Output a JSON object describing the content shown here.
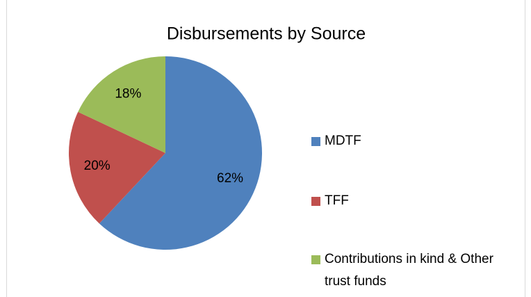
{
  "chart_data": {
    "type": "pie",
    "title": "Disbursements by Source",
    "categories": [
      "MDTF",
      "TFF",
      "Contributions in kind & Other trust funds"
    ],
    "values": [
      62,
      20,
      18
    ],
    "value_labels": [
      "62%",
      "20%",
      "18%"
    ],
    "colors": [
      "#4f81bd",
      "#c0504d",
      "#9bbb59"
    ],
    "legend": "right"
  }
}
